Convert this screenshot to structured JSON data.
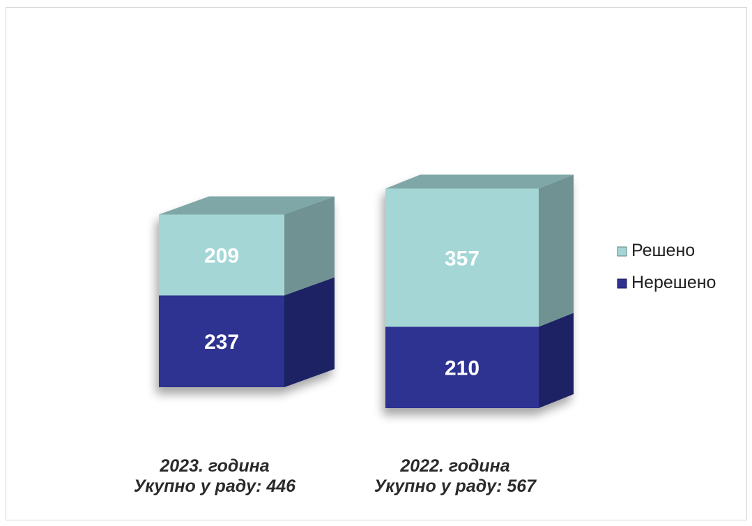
{
  "chart_data": {
    "type": "bar",
    "stacked": true,
    "style": "3d-box",
    "categories": [
      {
        "line1": "2023. година",
        "line2": "Укупно у раду: 446"
      },
      {
        "line1": "2022. година",
        "line2": "Укупно у раду: 567"
      }
    ],
    "series": [
      {
        "name": "Нерешено",
        "values": [
          237,
          210
        ],
        "color": "#2e3191"
      },
      {
        "name": "Решено",
        "values": [
          209,
          357
        ],
        "color": "#a4d6d6"
      }
    ],
    "legend": {
      "position": "right"
    },
    "grid": false,
    "axes_visible": false
  }
}
